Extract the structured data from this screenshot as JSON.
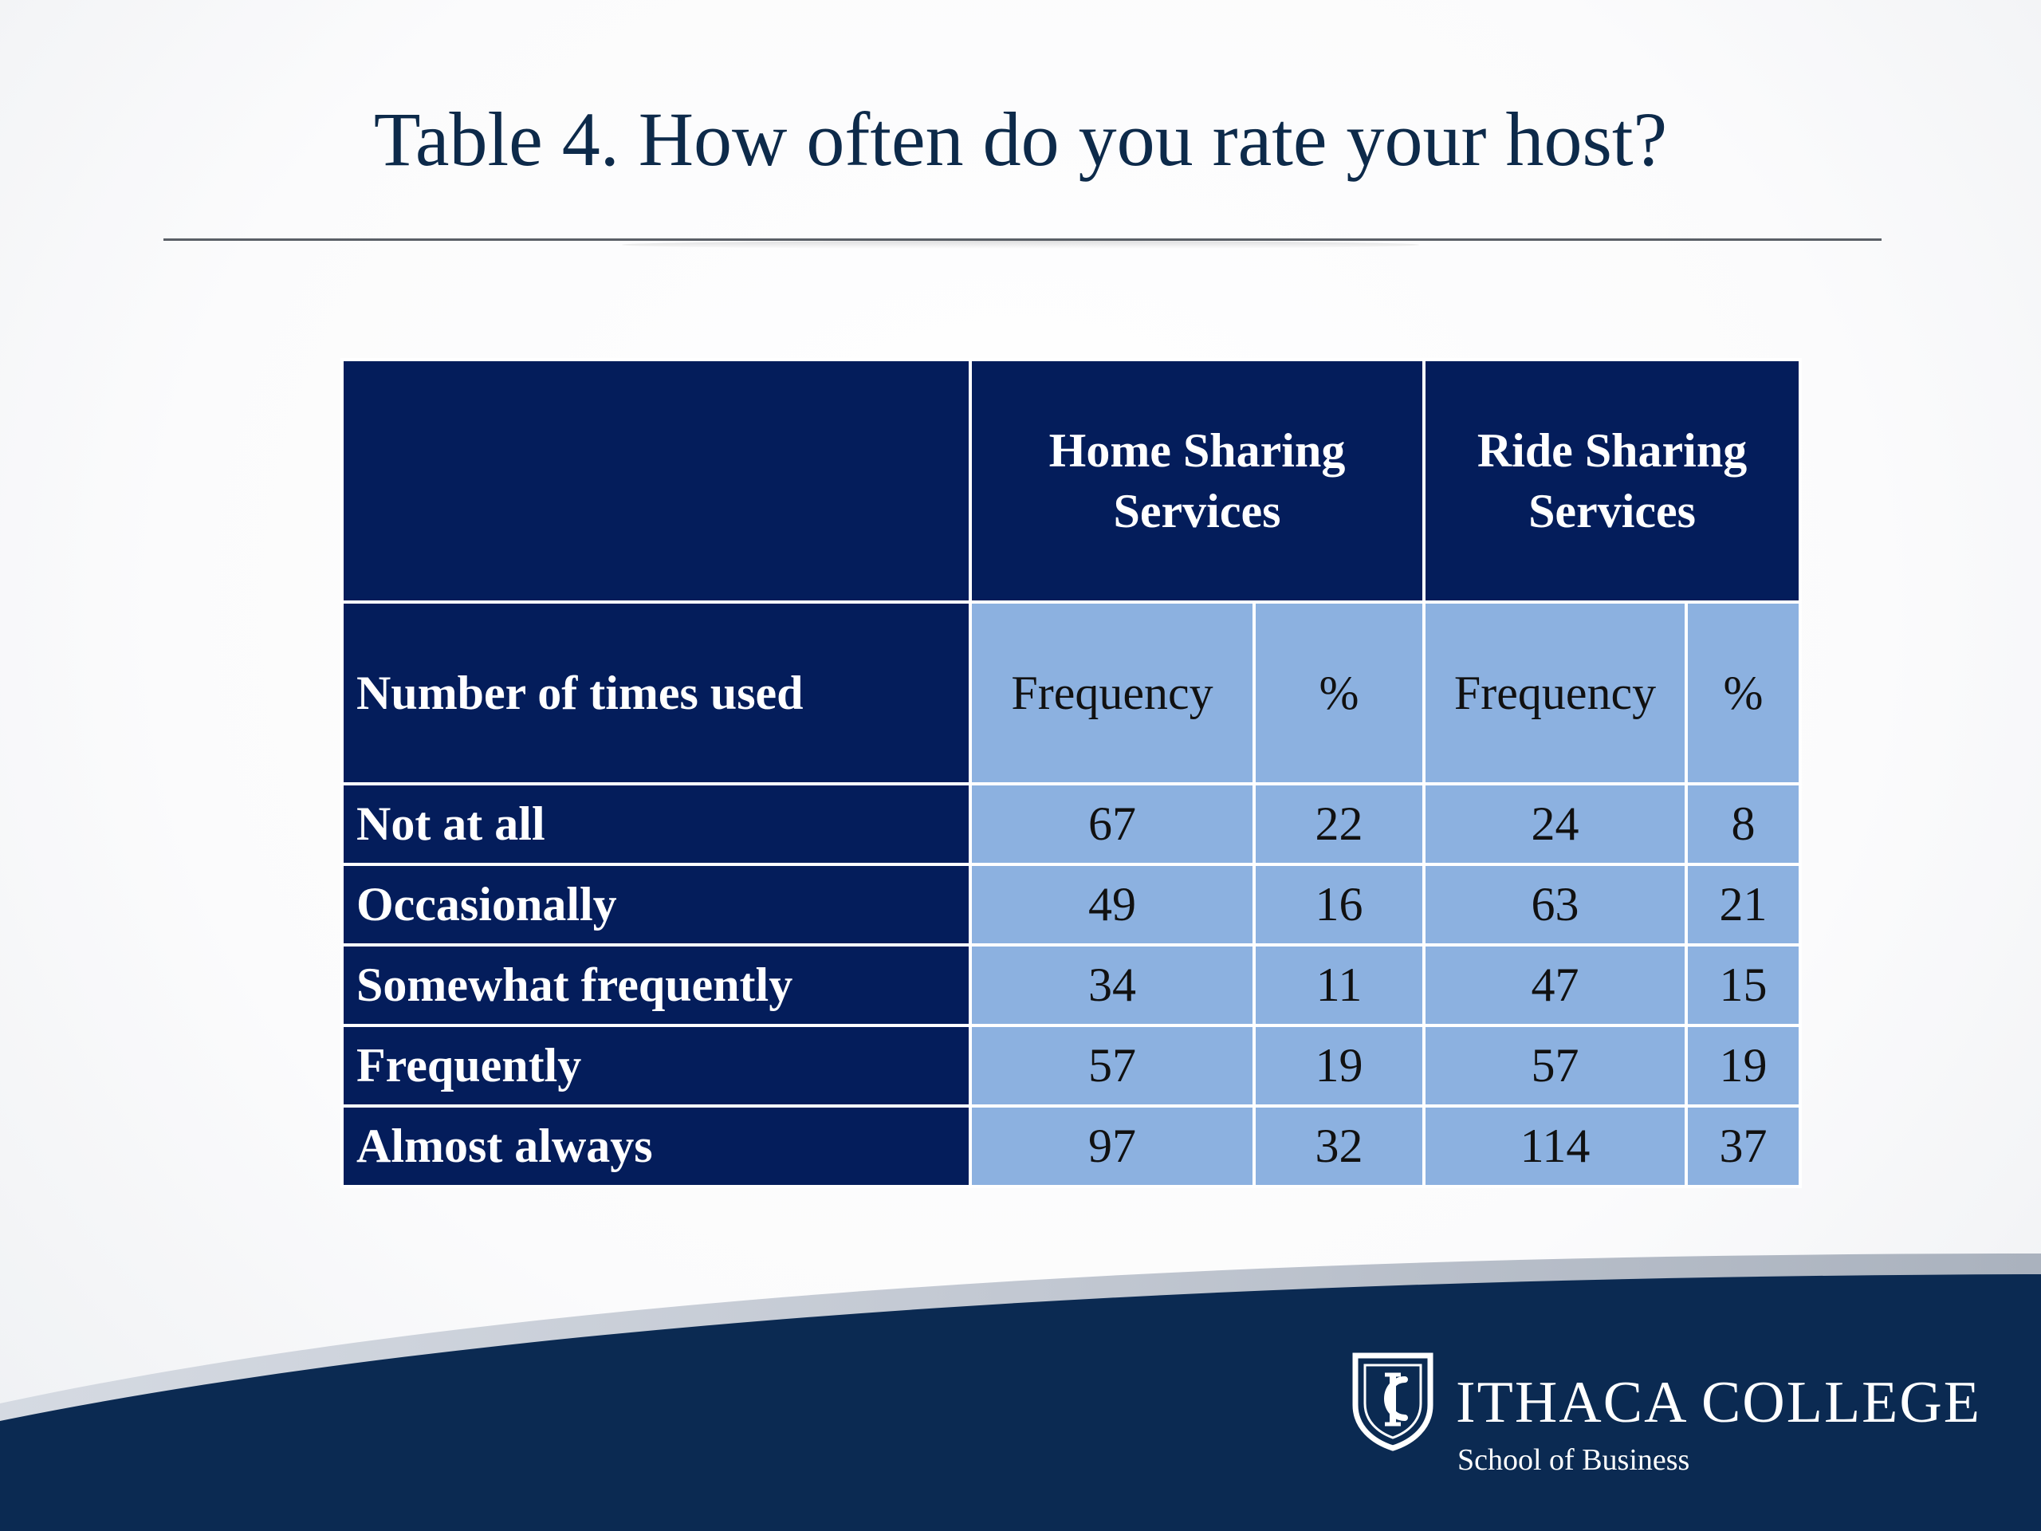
{
  "slide": {
    "title": "Table 4. How often do you rate your host?"
  },
  "table": {
    "groups": [
      "Home Sharing Services",
      "Ride Sharing Services"
    ],
    "row_header": "Number of times used",
    "sub_headers": [
      "Frequency",
      "%",
      "Frequency",
      "%"
    ],
    "rows": [
      {
        "label": "Not at all",
        "values": [
          "67",
          "22",
          "24",
          "8"
        ]
      },
      {
        "label": "Occasionally",
        "values": [
          "49",
          "16",
          "63",
          "21"
        ]
      },
      {
        "label": "Somewhat frequently",
        "values": [
          "34",
          "11",
          "47",
          "15"
        ]
      },
      {
        "label": "Frequently",
        "values": [
          "57",
          "19",
          "57",
          "19"
        ]
      },
      {
        "label": "Almost always",
        "values": [
          "97",
          "32",
          "114",
          "37"
        ]
      }
    ]
  },
  "footer": {
    "college_name": "ITHACA COLLEGE",
    "school_name": "School of Business",
    "logo_icon": "ic-shield-icon"
  },
  "colors": {
    "dark_navy": "#041d5b",
    "light_blue": "#8cb1e0",
    "footer_navy": "#0b2a52",
    "title_text": "#0d2a4a"
  }
}
